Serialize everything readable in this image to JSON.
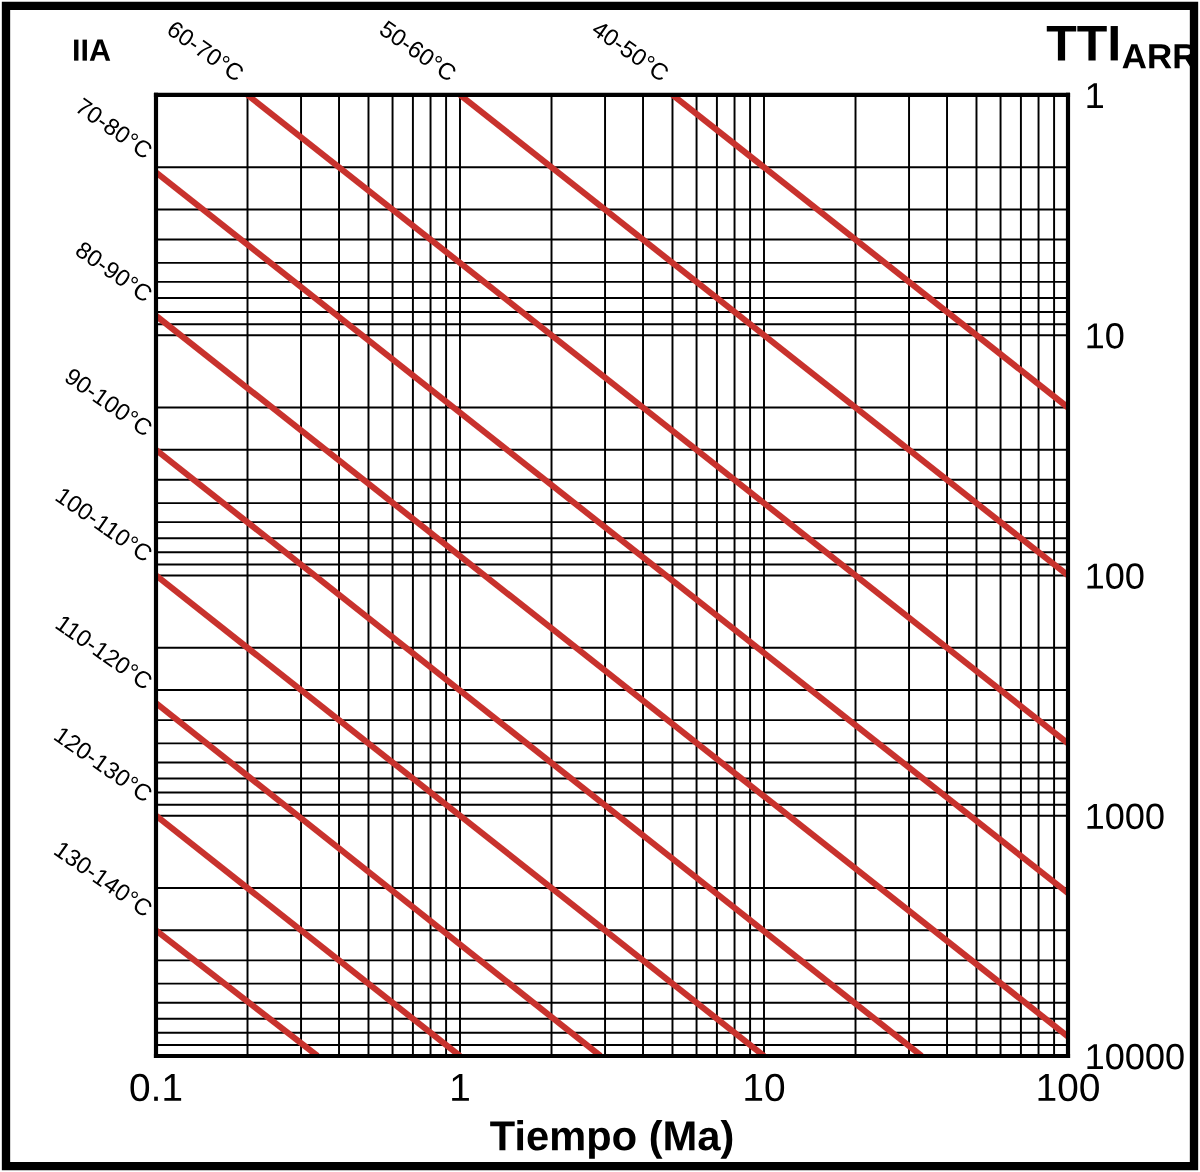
{
  "chart_data": {
    "type": "line",
    "title": "IIA",
    "xlabel": "Tiempo (Ma)",
    "ylabel": "TTI$_{ARR}$",
    "log": "xy",
    "xlim": [
      0.1,
      100
    ],
    "xticks": [
      0.1,
      1,
      10,
      100
    ],
    "ylim": [
      10000,
      1
    ],
    "yticks": [
      1,
      10,
      100,
      1000,
      10000
    ],
    "grid": true,
    "legend": false,
    "marker": "none",
    "line_style": "solid",
    "series": [
      {
        "name": "40-50°C",
        "color": "#c8322d",
        "x": [
          5,
          100
        ],
        "values": [
          1,
          20
        ]
      },
      {
        "name": "50-60°C",
        "color": "#c8322d",
        "x": [
          1,
          100
        ],
        "values": [
          1,
          100
        ]
      },
      {
        "name": "60-70°C",
        "color": "#c8322d",
        "x": [
          0.2,
          100
        ],
        "values": [
          1,
          500
        ]
      },
      {
        "name": "70-80°C",
        "color": "#c8322d",
        "x": [
          0.1,
          100
        ],
        "values": [
          2.1,
          2100
        ]
      },
      {
        "name": "80-90°C",
        "color": "#c8322d",
        "x": [
          0.1,
          100
        ],
        "values": [
          8.3,
          8300
        ]
      },
      {
        "name": "90-100°C",
        "color": "#c8322d",
        "x": [
          0.1,
          33
        ],
        "values": [
          30,
          10000
        ]
      },
      {
        "name": "100-110°C",
        "color": "#c8322d",
        "x": [
          0.1,
          10
        ],
        "values": [
          100,
          10000
        ]
      },
      {
        "name": "110-120°C",
        "color": "#c8322d",
        "x": [
          0.1,
          2.9
        ],
        "values": [
          340,
          10000
        ]
      },
      {
        "name": "120-130°C",
        "color": "#c8322d",
        "x": [
          0.1,
          1
        ],
        "values": [
          1000,
          10000
        ]
      },
      {
        "name": "130-140°C",
        "color": "#c8322d",
        "x": [
          0.1,
          0.34
        ],
        "values": [
          3000,
          10000
        ]
      }
    ]
  }
}
